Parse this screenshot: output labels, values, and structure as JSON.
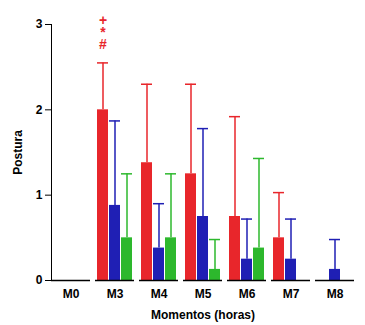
{
  "chart_data": {
    "type": "bar",
    "x_label": "Momentos (horas)",
    "y_label": "Postura",
    "categories": [
      "M0",
      "M3",
      "M4",
      "M5",
      "M6",
      "M7",
      "M8"
    ],
    "series": [
      {
        "color": "#e8262b",
        "values": [
          0,
          2.0,
          1.38,
          1.25,
          0.75,
          0.5,
          0
        ],
        "errors": [
          0,
          0.55,
          0.92,
          1.05,
          1.17,
          0.53,
          0
        ]
      },
      {
        "color": "#1f1fb4",
        "values": [
          0,
          0.88,
          0.38,
          0.75,
          0.25,
          0.25,
          0.13
        ],
        "errors": [
          0,
          0.99,
          0.52,
          1.03,
          0.47,
          0.47,
          0.35
        ]
      },
      {
        "color": "#2db82d",
        "values": [
          0,
          0.5,
          0.5,
          0.13,
          0.38,
          0,
          0
        ],
        "errors": [
          0,
          0.75,
          0.75,
          0.35,
          1.05,
          0,
          0
        ]
      }
    ],
    "annotations": [
      {
        "text": "+",
        "x": "M3",
        "color": "#e8262b"
      },
      {
        "text": "*",
        "x": "M3",
        "color": "#e8262b"
      },
      {
        "text": "#",
        "x": "M3",
        "color": "#e8262b"
      }
    ],
    "ylim": [
      0,
      3
    ],
    "yticks": [
      0,
      1,
      2,
      3
    ],
    "grid": false
  }
}
